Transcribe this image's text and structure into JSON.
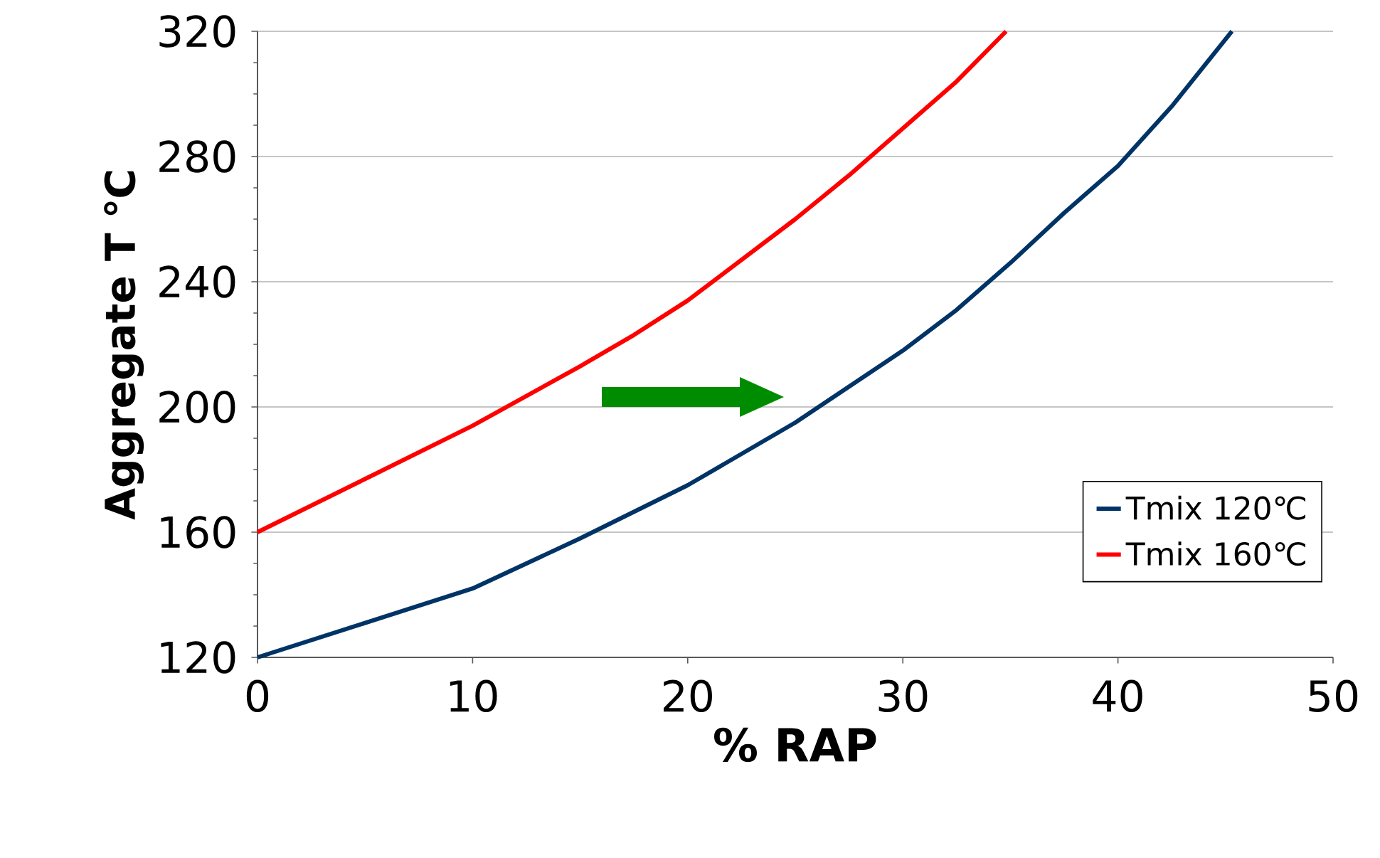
{
  "chart_data": {
    "type": "line",
    "xlabel": "% RAP",
    "ylabel": "Aggregate T ℃",
    "xlim": [
      0,
      50
    ],
    "ylim": [
      120,
      320
    ],
    "xticks": [
      0,
      10,
      20,
      30,
      40,
      50
    ],
    "yticks": [
      120,
      160,
      200,
      240,
      280,
      320
    ],
    "grid": "y",
    "legend": "bottom right",
    "line_style": "solid",
    "marker": "none",
    "series": [
      {
        "name": "Tmix 120℃",
        "color": "#003366",
        "x": [
          0,
          5,
          10,
          15,
          20,
          25,
          30,
          32.5,
          35,
          37.5,
          40,
          42.5,
          45.3
        ],
        "values": [
          120,
          131,
          142,
          158,
          175,
          195,
          218,
          231,
          246,
          262,
          277,
          296,
          320
        ]
      },
      {
        "name": "Tmix 160℃",
        "color": "#ff0000",
        "x": [
          0,
          5,
          10,
          15,
          17.5,
          20,
          25,
          27.5,
          30,
          32.5,
          34.8
        ],
        "values": [
          160,
          177,
          194,
          213,
          223,
          234,
          260,
          274,
          289,
          304,
          320
        ]
      }
    ]
  }
}
